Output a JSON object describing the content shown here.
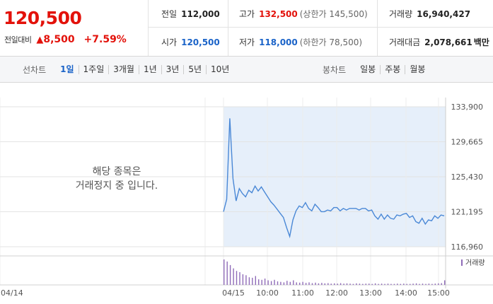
{
  "summary": {
    "current_price": "120,500",
    "change_label": "전일대비",
    "change_icon": "up-triangle-icon",
    "change_amount": "8,500",
    "change_rate": "+7.59%",
    "prev_close": {
      "label": "전일",
      "value": "112,000"
    },
    "high": {
      "label": "고가",
      "value": "132,500",
      "limit_text": "(상한가 145,500)"
    },
    "volume": {
      "label": "거래량",
      "value": "16,940,427"
    },
    "open": {
      "label": "시가",
      "value": "120,500"
    },
    "low": {
      "label": "저가",
      "value": "118,000",
      "limit_text": "(하한가 78,500)"
    },
    "trade_value": {
      "label": "거래대금",
      "value": "2,078,661",
      "unit": "백만"
    }
  },
  "colors": {
    "up": "#e3120b",
    "blue": "#1a63c8",
    "area_fill": "#e6effa",
    "line": "#4a88d6",
    "volume": "#8f6bb8"
  },
  "tabs": {
    "line_chart_label": "선차트",
    "line_chart_periods": [
      {
        "label": "1일",
        "active": true
      },
      {
        "label": "1주일",
        "active": false
      },
      {
        "label": "3개월",
        "active": false
      },
      {
        "label": "1년",
        "active": false
      },
      {
        "label": "3년",
        "active": false
      },
      {
        "label": "5년",
        "active": false
      },
      {
        "label": "10년",
        "active": false
      }
    ],
    "candle_chart_label": "봉차트",
    "candle_periods": [
      {
        "label": "일봉"
      },
      {
        "label": "주봉"
      },
      {
        "label": "월봉"
      }
    ]
  },
  "halt_message": [
    "해당 종목은",
    "거래정지 중 입니다."
  ],
  "chart_data": {
    "type": "area",
    "title": "",
    "y_ticks": [
      "133,900",
      "129,665",
      "125,430",
      "121,195",
      "116,960"
    ],
    "ylim": [
      116960,
      133900
    ],
    "x_ticks": [
      "04/14",
      "04/15",
      "10:00",
      "11:00",
      "12:00",
      "13:00",
      "14:00",
      "15:00"
    ],
    "volume_label": "거래량",
    "grid": true,
    "series": [
      {
        "values": [
          121200,
          122700,
          132500,
          125200,
          122500,
          124000,
          123400,
          123000,
          123800,
          123500,
          124300,
          123700,
          124200,
          123600,
          123000,
          122400,
          122000,
          121500,
          121000,
          120500,
          119300,
          118200,
          120200,
          121300,
          121900,
          121700,
          122300,
          121600,
          121300,
          122100,
          121700,
          121200,
          121200,
          121400,
          121300,
          121700,
          121700,
          121300,
          121600,
          121400,
          121600,
          121600,
          121600,
          121400,
          121600,
          121600,
          121300,
          121400,
          120700,
          120300,
          120900,
          120300,
          120800,
          120400,
          120300,
          120800,
          120700,
          120900,
          121000,
          120500,
          120700,
          120000,
          119800,
          120400,
          119700,
          120200,
          120100,
          120700,
          120400,
          120800,
          120700
        ]
      }
    ],
    "volume": [
      1.0,
      0.92,
      0.78,
      0.65,
      0.55,
      0.5,
      0.42,
      0.38,
      0.3,
      0.28,
      0.35,
      0.22,
      0.2,
      0.25,
      0.18,
      0.15,
      0.2,
      0.14,
      0.12,
      0.1,
      0.16,
      0.12,
      0.18,
      0.1,
      0.09,
      0.12,
      0.08,
      0.1,
      0.07,
      0.09,
      0.06,
      0.08,
      0.06,
      0.07,
      0.05,
      0.06,
      0.05,
      0.07,
      0.05,
      0.06,
      0.05,
      0.04,
      0.06,
      0.05,
      0.04,
      0.05,
      0.05,
      0.04,
      0.06,
      0.04,
      0.05,
      0.04,
      0.05,
      0.04,
      0.04,
      0.05,
      0.04,
      0.05,
      0.04,
      0.04,
      0.05,
      0.06,
      0.04,
      0.05,
      0.04,
      0.05,
      0.04,
      0.05,
      0.06,
      0.07,
      0.18
    ]
  }
}
